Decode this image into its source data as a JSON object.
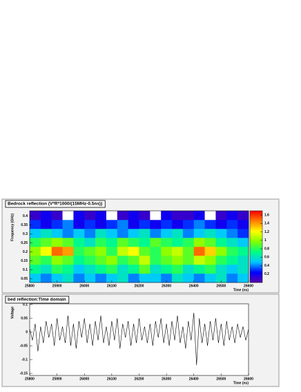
{
  "chart_data": [
    {
      "type": "heatmap",
      "title": "Bedrock reflection (V*R*1000/(15MHz-0.5ns))",
      "x_label": "Time (ns)",
      "y_label": "Frequency (GHz)",
      "xlim": [
        25800,
        26600
      ],
      "xticks": [
        25800,
        25900,
        26000,
        26100,
        26200,
        26300,
        26400,
        26500,
        26600
      ],
      "ylim": [
        0.03,
        0.43
      ],
      "yticks": [
        0.05,
        0.1,
        0.15,
        0.2,
        0.25,
        0.3,
        0.35,
        0.4
      ],
      "zlim": [
        0,
        1.7
      ],
      "zticks": [
        0.2,
        0.4,
        0.6,
        0.8,
        1,
        1.2,
        1.4,
        1.6
      ],
      "palette": [
        "#ffffff",
        "#5a00a8",
        "#0000ff",
        "#00c8ff",
        "#00ff80",
        "#80ff00",
        "#ffff00",
        "#ff8000",
        "#ff0000"
      ],
      "x": [
        25820,
        25860,
        25900,
        25940,
        25980,
        26020,
        26060,
        26100,
        26140,
        26180,
        26220,
        26260,
        26300,
        26340,
        26380,
        26420,
        26460,
        26500,
        26540,
        26580
      ],
      "y": [
        0.055,
        0.105,
        0.155,
        0.205,
        0.255,
        0.305,
        0.355,
        0.405
      ],
      "z": [
        [
          0.5,
          0.4,
          0.5,
          0.6,
          0.4,
          0.5,
          0.4,
          0.5,
          0.6,
          0.4,
          0.5,
          0.5,
          0.4,
          0.6,
          0.5,
          0.4,
          0.5,
          0.6,
          0.4,
          0.5
        ],
        [
          0.7,
          0.6,
          0.8,
          0.7,
          0.5,
          0.6,
          0.7,
          0.8,
          0.6,
          0.7,
          0.9,
          0.6,
          0.7,
          0.8,
          0.6,
          0.7,
          0.8,
          0.6,
          0.5,
          0.6
        ],
        [
          0.9,
          0.8,
          1.0,
          0.9,
          0.7,
          0.8,
          0.9,
          1.0,
          0.8,
          0.9,
          1.1,
          0.8,
          0.9,
          1.0,
          0.9,
          1.1,
          1.0,
          0.8,
          0.7,
          0.6
        ],
        [
          1.0,
          1.2,
          1.5,
          1.4,
          0.8,
          0.9,
          1.0,
          0.8,
          1.1,
          1.2,
          0.9,
          0.8,
          1.0,
          1.1,
          0.9,
          1.5,
          1.3,
          1.0,
          0.8,
          0.7
        ],
        [
          0.8,
          0.9,
          1.0,
          0.9,
          0.7,
          0.6,
          0.8,
          0.7,
          0.9,
          0.8,
          0.7,
          0.9,
          0.8,
          0.7,
          0.8,
          1.0,
          0.9,
          0.7,
          0.6,
          0.5
        ],
        [
          0.5,
          0.6,
          0.5,
          0.4,
          0.5,
          0.4,
          0.6,
          0.5,
          0.4,
          0.5,
          0.6,
          0.4,
          0.5,
          0.6,
          0.4,
          0.5,
          0.6,
          0.5,
          0.4,
          0.3
        ],
        [
          0.3,
          0.2,
          0.3,
          0.4,
          0.2,
          0.3,
          0.2,
          0.3,
          0.4,
          0.2,
          0.3,
          0.2,
          0.3,
          0.2,
          0.3,
          0.4,
          0.3,
          0.2,
          0.3,
          0.2
        ],
        [
          0.1,
          0.2,
          0.1,
          0,
          0.2,
          0.1,
          0.2,
          0,
          0.1,
          0.2,
          0.1,
          0,
          0.2,
          0.1,
          0.1,
          0.2,
          0,
          0.1,
          0.2,
          0.1
        ]
      ]
    },
    {
      "type": "line",
      "title": "bed reflection:Time domain",
      "x_label": "Time (ns)",
      "y_label": "Voltage",
      "color": "#000000",
      "xlim": [
        25800,
        26600
      ],
      "xticks": [
        25800,
        25900,
        26000,
        26100,
        26200,
        26300,
        26400,
        26500,
        26600
      ],
      "ylim": [
        -0.1575,
        0.1025
      ],
      "yticks": [
        -0.15,
        -0.1,
        -0.05,
        0,
        0.05,
        0.1
      ],
      "x": [
        25800,
        25810,
        25820,
        25830,
        25840,
        25850,
        25860,
        25870,
        25880,
        25890,
        25900,
        25910,
        25920,
        25930,
        25940,
        25950,
        25960,
        25970,
        25980,
        25990,
        26000,
        26010,
        26020,
        26030,
        26040,
        26050,
        26060,
        26070,
        26080,
        26090,
        26100,
        26110,
        26120,
        26130,
        26140,
        26150,
        26160,
        26170,
        26180,
        26190,
        26200,
        26210,
        26220,
        26230,
        26240,
        26250,
        26260,
        26270,
        26280,
        26290,
        26300,
        26310,
        26320,
        26330,
        26340,
        26350,
        26360,
        26370,
        26380,
        26390,
        26400,
        26410,
        26420,
        26430,
        26440,
        26450,
        26460,
        26470,
        26480,
        26490,
        26500,
        26510,
        26520,
        26530,
        26540,
        26550,
        26560,
        26570,
        26580,
        26590,
        26600
      ],
      "values": [
        0.01,
        -0.03,
        0.03,
        -0.07,
        0.02,
        -0.04,
        0.04,
        -0.02,
        0.03,
        -0.05,
        0.05,
        -0.03,
        0.02,
        -0.04,
        0.06,
        -0.05,
        0.03,
        -0.06,
        0.04,
        -0.02,
        0.05,
        -0.04,
        0.03,
        -0.05,
        0.04,
        -0.03,
        0.06,
        -0.04,
        0.02,
        -0.05,
        0.04,
        -0.03,
        0.05,
        -0.06,
        0.03,
        -0.02,
        0.04,
        -0.05,
        0.03,
        -0.04,
        0.05,
        -0.03,
        0.02,
        -0.04,
        0.03,
        -0.05,
        0.04,
        -0.02,
        0.05,
        -0.04,
        0.03,
        -0.05,
        0.04,
        -0.03,
        0.06,
        -0.04,
        0.02,
        -0.06,
        0.04,
        -0.03,
        0.07,
        -0.12,
        0.05,
        -0.04,
        0.03,
        -0.05,
        0.04,
        -0.03,
        0.05,
        -0.04,
        0.03,
        -0.05,
        0.04,
        -0.03,
        0.02,
        -0.04,
        0.03,
        -0.02,
        0.02,
        -0.03,
        0.01
      ]
    }
  ]
}
